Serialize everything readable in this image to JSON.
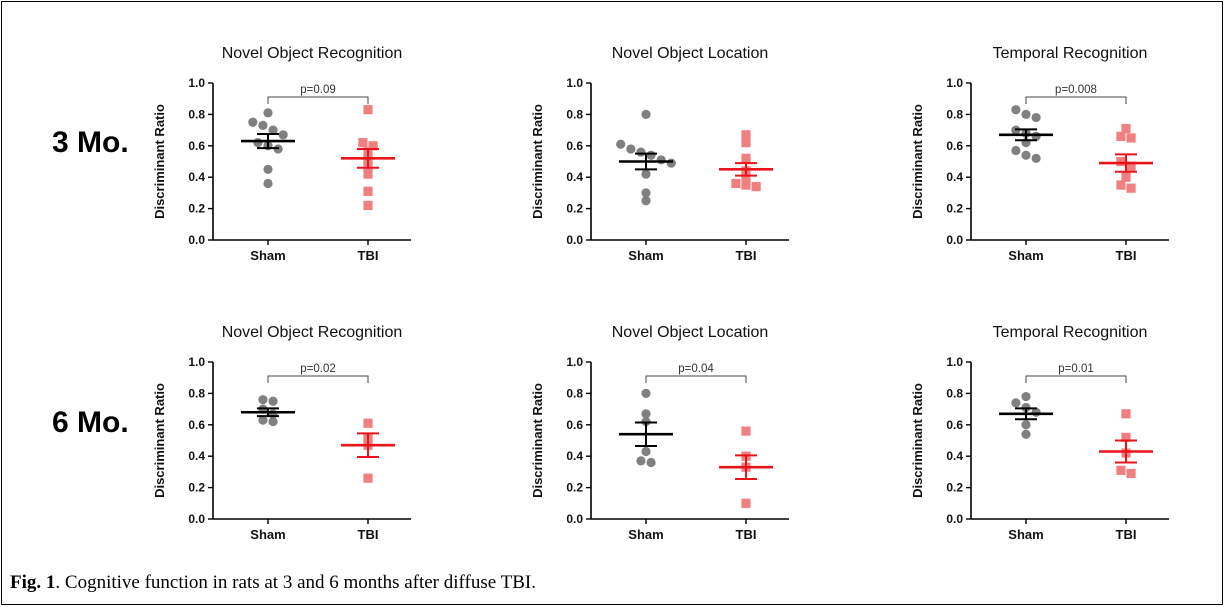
{
  "row_labels": [
    "3 Mo.",
    "6 Mo."
  ],
  "caption": {
    "label": "Fig. 1",
    "text": ". Cognitive function in rats at 3 and 6 months after diffuse TBI."
  },
  "colors": {
    "sham": "#808080",
    "tbi": "#f08080",
    "sham_line": "#000000",
    "tbi_line": "#e8141c"
  },
  "chart_data": [
    {
      "type": "scatter",
      "row": 0,
      "col": 0,
      "title": "Novel Object Recognition",
      "ylabel": "Discriminant Ratio",
      "ylim": [
        0,
        1.0
      ],
      "yticks": [
        "0.0",
        "0.2",
        "0.4",
        "0.6",
        "0.8",
        "1.0"
      ],
      "categories": [
        "Sham",
        "TBI"
      ],
      "pvalue": "p=0.09",
      "series": [
        {
          "name": "Sham",
          "mean": 0.63,
          "sem": 0.045,
          "values": [
            0.81,
            0.75,
            0.73,
            0.7,
            0.67,
            0.62,
            0.6,
            0.58,
            0.45,
            0.36
          ]
        },
        {
          "name": "TBI",
          "mean": 0.52,
          "sem": 0.06,
          "values": [
            0.83,
            0.62,
            0.6,
            0.56,
            0.52,
            0.47,
            0.42,
            0.31,
            0.22
          ]
        }
      ]
    },
    {
      "type": "scatter",
      "row": 0,
      "col": 1,
      "title": "Novel Object Location",
      "ylabel": "Discriminant Ratio",
      "ylim": [
        0,
        1.0
      ],
      "yticks": [
        "0.0",
        "0.2",
        "0.4",
        "0.6",
        "0.8",
        "1.0"
      ],
      "categories": [
        "Sham",
        "TBI"
      ],
      "pvalue": "",
      "series": [
        {
          "name": "Sham",
          "mean": 0.5,
          "sem": 0.05,
          "values": [
            0.8,
            0.61,
            0.58,
            0.56,
            0.54,
            0.51,
            0.49,
            0.42,
            0.3,
            0.25
          ]
        },
        {
          "name": "TBI",
          "mean": 0.45,
          "sem": 0.04,
          "values": [
            0.67,
            0.62,
            0.52,
            0.44,
            0.4,
            0.36,
            0.35,
            0.34
          ]
        }
      ]
    },
    {
      "type": "scatter",
      "row": 0,
      "col": 2,
      "title": "Temporal Recognition",
      "ylabel": "Discriminant Ratio",
      "ylim": [
        0,
        1.0
      ],
      "yticks": [
        "0.0",
        "0.2",
        "0.4",
        "0.6",
        "0.8",
        "1.0"
      ],
      "categories": [
        "Sham",
        "TBI"
      ],
      "pvalue": "p=0.008",
      "series": [
        {
          "name": "Sham",
          "mean": 0.67,
          "sem": 0.035,
          "values": [
            0.83,
            0.8,
            0.78,
            0.7,
            0.68,
            0.66,
            0.62,
            0.57,
            0.54,
            0.52
          ]
        },
        {
          "name": "TBI",
          "mean": 0.49,
          "sem": 0.055,
          "values": [
            0.71,
            0.66,
            0.65,
            0.5,
            0.47,
            0.4,
            0.35,
            0.33
          ]
        }
      ]
    },
    {
      "type": "scatter",
      "row": 1,
      "col": 0,
      "title": "Novel Object Recognition",
      "ylabel": "Discriminant Ratio",
      "ylim": [
        0,
        1.0
      ],
      "yticks": [
        "0.0",
        "0.2",
        "0.4",
        "0.6",
        "0.8",
        "1.0"
      ],
      "categories": [
        "Sham",
        "TBI"
      ],
      "pvalue": "p=0.02",
      "series": [
        {
          "name": "Sham",
          "mean": 0.68,
          "sem": 0.025,
          "values": [
            0.76,
            0.75,
            0.7,
            0.67,
            0.63,
            0.62
          ]
        },
        {
          "name": "TBI",
          "mean": 0.47,
          "sem": 0.075,
          "values": [
            0.61,
            0.52,
            0.47,
            0.26
          ]
        }
      ]
    },
    {
      "type": "scatter",
      "row": 1,
      "col": 1,
      "title": "Novel Object Location",
      "ylabel": "Discriminant Ratio",
      "ylim": [
        0,
        1.0
      ],
      "yticks": [
        "0.0",
        "0.2",
        "0.4",
        "0.6",
        "0.8",
        "1.0"
      ],
      "categories": [
        "Sham",
        "TBI"
      ],
      "pvalue": "p=0.04",
      "series": [
        {
          "name": "Sham",
          "mean": 0.54,
          "sem": 0.075,
          "values": [
            0.8,
            0.67,
            0.62,
            0.43,
            0.37,
            0.36
          ]
        },
        {
          "name": "TBI",
          "mean": 0.33,
          "sem": 0.075,
          "values": [
            0.56,
            0.4,
            0.33,
            0.1
          ]
        }
      ]
    },
    {
      "type": "scatter",
      "row": 1,
      "col": 2,
      "title": "Temporal Recognition",
      "ylabel": "Discriminant Ratio",
      "ylim": [
        0,
        1.0
      ],
      "yticks": [
        "0.0",
        "0.2",
        "0.4",
        "0.6",
        "0.8",
        "1.0"
      ],
      "categories": [
        "Sham",
        "TBI"
      ],
      "pvalue": "p=0.01",
      "series": [
        {
          "name": "Sham",
          "mean": 0.67,
          "sem": 0.035,
          "values": [
            0.78,
            0.74,
            0.71,
            0.68,
            0.6,
            0.54
          ]
        },
        {
          "name": "TBI",
          "mean": 0.43,
          "sem": 0.07,
          "values": [
            0.67,
            0.52,
            0.42,
            0.31,
            0.29
          ]
        }
      ]
    }
  ]
}
